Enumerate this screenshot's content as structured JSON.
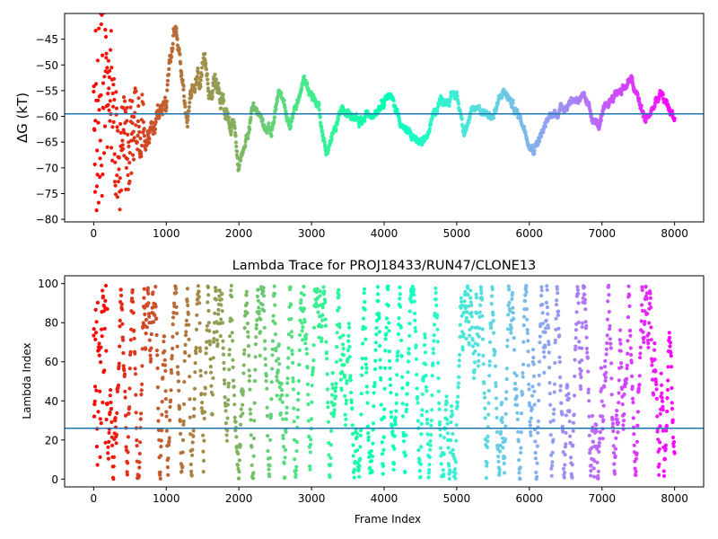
{
  "chart_data": [
    {
      "type": "scatter",
      "title": "",
      "ylabel": "ΔG (kT)",
      "xlabel": "",
      "xlim": [
        -400,
        8400
      ],
      "ylim": [
        -80.5,
        -40
      ],
      "x_ticks": [
        0,
        1000,
        2000,
        3000,
        4000,
        5000,
        6000,
        7000,
        8000
      ],
      "x_tick_labels": [
        "0",
        "1000",
        "2000",
        "3000",
        "4000",
        "5000",
        "6000",
        "7000",
        "8000"
      ],
      "y_ticks": [
        -80,
        -75,
        -70,
        -65,
        -60,
        -55,
        -50,
        -45
      ],
      "y_tick_labels": [
        "−80",
        "−75",
        "−70",
        "−65",
        "−60",
        "−55",
        "−50",
        "−45"
      ],
      "colormap": "rainbow (red at frame 0 → violet at frame 8000)",
      "hline": {
        "y": -59.5,
        "color": "#1f77b4"
      },
      "points_x": [
        0,
        200,
        400,
        600,
        800,
        1000,
        1100,
        1300,
        1450,
        1650,
        1900,
        2000,
        2200,
        2450,
        2550,
        2700,
        2900,
        3100,
        3200,
        3450,
        3650,
        3900,
        4050,
        4300,
        4550,
        4750,
        5000,
        5100,
        5300,
        5500,
        5650,
        5900,
        6050,
        6300,
        6550,
        6700,
        6950,
        7150,
        7400,
        7600,
        7800,
        8000
      ],
      "points_y": [
        -60,
        -55,
        -62,
        -60,
        -63,
        -57,
        -45,
        -60,
        -53,
        -53,
        -60,
        -70,
        -58,
        -63,
        -55,
        -62,
        -53,
        -58,
        -67,
        -58,
        -62,
        -58,
        -55,
        -63,
        -66,
        -57,
        -56,
        -62,
        -58,
        -60,
        -55,
        -61,
        -66,
        -60,
        -57,
        -56,
        -62,
        -56,
        -53,
        -61,
        -56,
        -60
      ]
    },
    {
      "type": "scatter",
      "title": "Lambda Trace for PROJ18433/RUN47/CLONE13",
      "xlabel": "Frame Index",
      "ylabel": "Lambda Index",
      "xlim": [
        -400,
        8400
      ],
      "ylim": [
        -4,
        104
      ],
      "x_ticks": [
        0,
        1000,
        2000,
        3000,
        4000,
        5000,
        6000,
        7000,
        8000
      ],
      "x_tick_labels": [
        "0",
        "1000",
        "2000",
        "3000",
        "4000",
        "5000",
        "6000",
        "7000",
        "8000"
      ],
      "y_ticks": [
        0,
        20,
        40,
        60,
        80,
        100
      ],
      "y_tick_labels": [
        "0",
        "20",
        "40",
        "60",
        "80",
        "100"
      ],
      "colormap": "rainbow (red at frame 0 → violet at frame 8000)",
      "hline": {
        "y": 26,
        "color": "#1f77b4"
      },
      "lambda_range": [
        0,
        99
      ],
      "frame_range": [
        0,
        8000
      ]
    }
  ]
}
